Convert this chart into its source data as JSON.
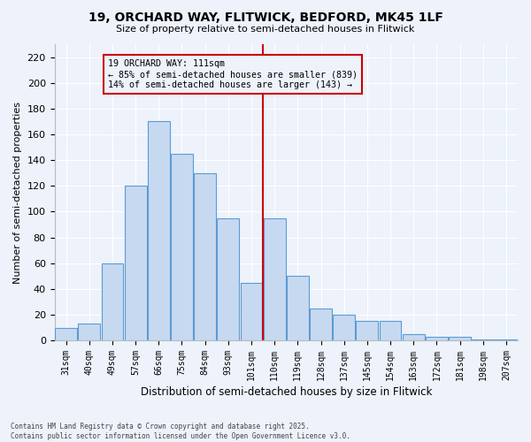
{
  "title1": "19, ORCHARD WAY, FLITWICK, BEDFORD, MK45 1LF",
  "title2": "Size of property relative to semi-detached houses in Flitwick",
  "xlabel": "Distribution of semi-detached houses by size in Flitwick",
  "ylabel": "Number of semi-detached properties",
  "categories": [
    "31sqm",
    "40sqm",
    "49sqm",
    "57sqm",
    "66sqm",
    "75sqm",
    "84sqm",
    "93sqm",
    "101sqm",
    "110sqm",
    "119sqm",
    "128sqm",
    "137sqm",
    "145sqm",
    "154sqm",
    "163sqm",
    "172sqm",
    "181sqm",
    "198sqm",
    "207sqm"
  ],
  "values": [
    10,
    13,
    60,
    120,
    170,
    145,
    130,
    95,
    45,
    95,
    50,
    25,
    20,
    15,
    15,
    5,
    3,
    3,
    1,
    1
  ],
  "bar_color": "#c7d9f0",
  "bar_edge_color": "#5b9bd5",
  "vline_color": "#cc0000",
  "annotation_title": "19 ORCHARD WAY: 111sqm",
  "annotation_line1": "← 85% of semi-detached houses are smaller (839)",
  "annotation_line2": "14% of semi-detached houses are larger (143) →",
  "footer1": "Contains HM Land Registry data © Crown copyright and database right 2025.",
  "footer2": "Contains public sector information licensed under the Open Government Licence v3.0.",
  "bg_color": "#edf2fb",
  "grid_color": "#ffffff",
  "ylim_max": 230,
  "yticks": [
    0,
    20,
    40,
    60,
    80,
    100,
    120,
    140,
    160,
    180,
    200,
    220
  ]
}
